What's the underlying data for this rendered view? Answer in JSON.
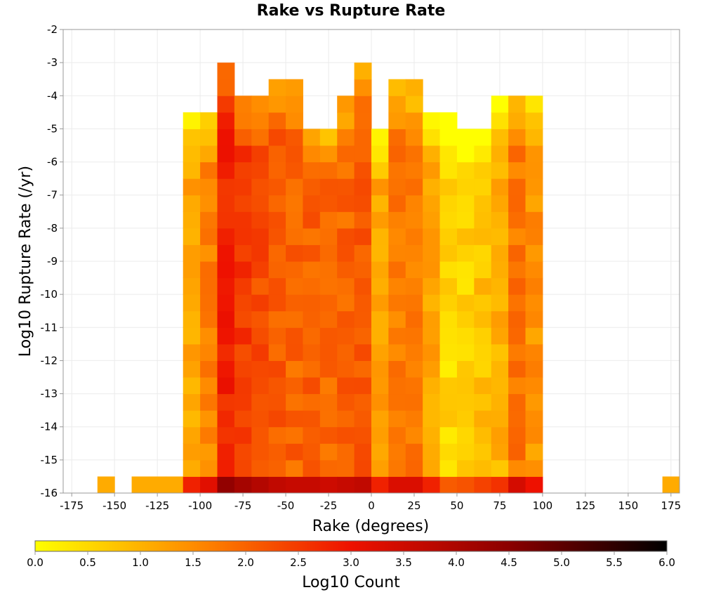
{
  "chart_data": {
    "type": "heatmap",
    "title": "Rake vs Rupture Rate",
    "xlabel": "Rake (degrees)",
    "ylabel": "Log10 Rupture Rate (/yr)",
    "xlim": [
      -180,
      180
    ],
    "ylim": [
      -16,
      -2
    ],
    "xticks": [
      -175,
      -150,
      -125,
      -100,
      -75,
      -50,
      -25,
      0,
      25,
      50,
      75,
      100,
      125,
      150,
      175
    ],
    "yticks": [
      -16,
      -15,
      -14,
      -13,
      -12,
      -11,
      -10,
      -9,
      -8,
      -7,
      -6,
      -5,
      -4,
      -3,
      -2
    ],
    "grid": true,
    "bin_width_x": 10,
    "bin_height_y": 0.5,
    "colorbar": {
      "label": "Log10 Count",
      "min": 0.0,
      "max": 6.0,
      "ticks": [
        "0.0",
        "0.5",
        "1.0",
        "1.5",
        "2.0",
        "2.5",
        "3.0",
        "3.5",
        "4.0",
        "4.5",
        "5.0",
        "5.5",
        "6.0"
      ],
      "colors": [
        "#ffff00",
        "#ff8c00",
        "#ee1100",
        "#8b0000",
        "#000000"
      ]
    },
    "x_bins": [
      -160,
      -140,
      -130,
      -120,
      -110,
      -100,
      -90,
      -80,
      -70,
      -60,
      -50,
      -40,
      -30,
      -20,
      -10,
      0,
      10,
      20,
      30,
      40,
      50,
      60,
      70,
      80,
      90,
      170
    ],
    "column_ranges": [
      {
        "x": -160,
        "y_min": -16,
        "y_max": -16
      },
      {
        "x": -140,
        "y_min": -16,
        "y_max": -16
      },
      {
        "x": -130,
        "y_min": -16,
        "y_max": -16
      },
      {
        "x": -120,
        "y_min": -16,
        "y_max": -16
      },
      {
        "x": -110,
        "y_min": -16,
        "y_max": -5.0
      },
      {
        "x": -100,
        "y_min": -16,
        "y_max": -5.0
      },
      {
        "x": -90,
        "y_min": -16,
        "y_max": -3.5
      },
      {
        "x": -80,
        "y_min": -16,
        "y_max": -4.5
      },
      {
        "x": -70,
        "y_min": -16,
        "y_max": -4.5
      },
      {
        "x": -60,
        "y_min": -16,
        "y_max": -4.0
      },
      {
        "x": -50,
        "y_min": -16,
        "y_max": -4.0
      },
      {
        "x": -40,
        "y_min": -16,
        "y_max": -5.5
      },
      {
        "x": -30,
        "y_min": -16,
        "y_max": -5.5
      },
      {
        "x": -20,
        "y_min": -16,
        "y_max": -4.5
      },
      {
        "x": -10,
        "y_min": -16,
        "y_max": -3.5
      },
      {
        "x": 0,
        "y_min": -16,
        "y_max": -5.5
      },
      {
        "x": 10,
        "y_min": -16,
        "y_max": -4.0
      },
      {
        "x": 20,
        "y_min": -16,
        "y_max": -4.0
      },
      {
        "x": 30,
        "y_min": -16,
        "y_max": -5.0
      },
      {
        "x": 40,
        "y_min": -16,
        "y_max": -5.0
      },
      {
        "x": 50,
        "y_min": -16,
        "y_max": -5.5
      },
      {
        "x": 60,
        "y_min": -16,
        "y_max": -5.5
      },
      {
        "x": 70,
        "y_min": -16,
        "y_max": -4.5
      },
      {
        "x": 80,
        "y_min": -16,
        "y_max": -4.5
      },
      {
        "x": 90,
        "y_min": -16,
        "y_max": -4.5
      },
      {
        "x": 170,
        "y_min": -16,
        "y_max": -16
      }
    ]
  }
}
